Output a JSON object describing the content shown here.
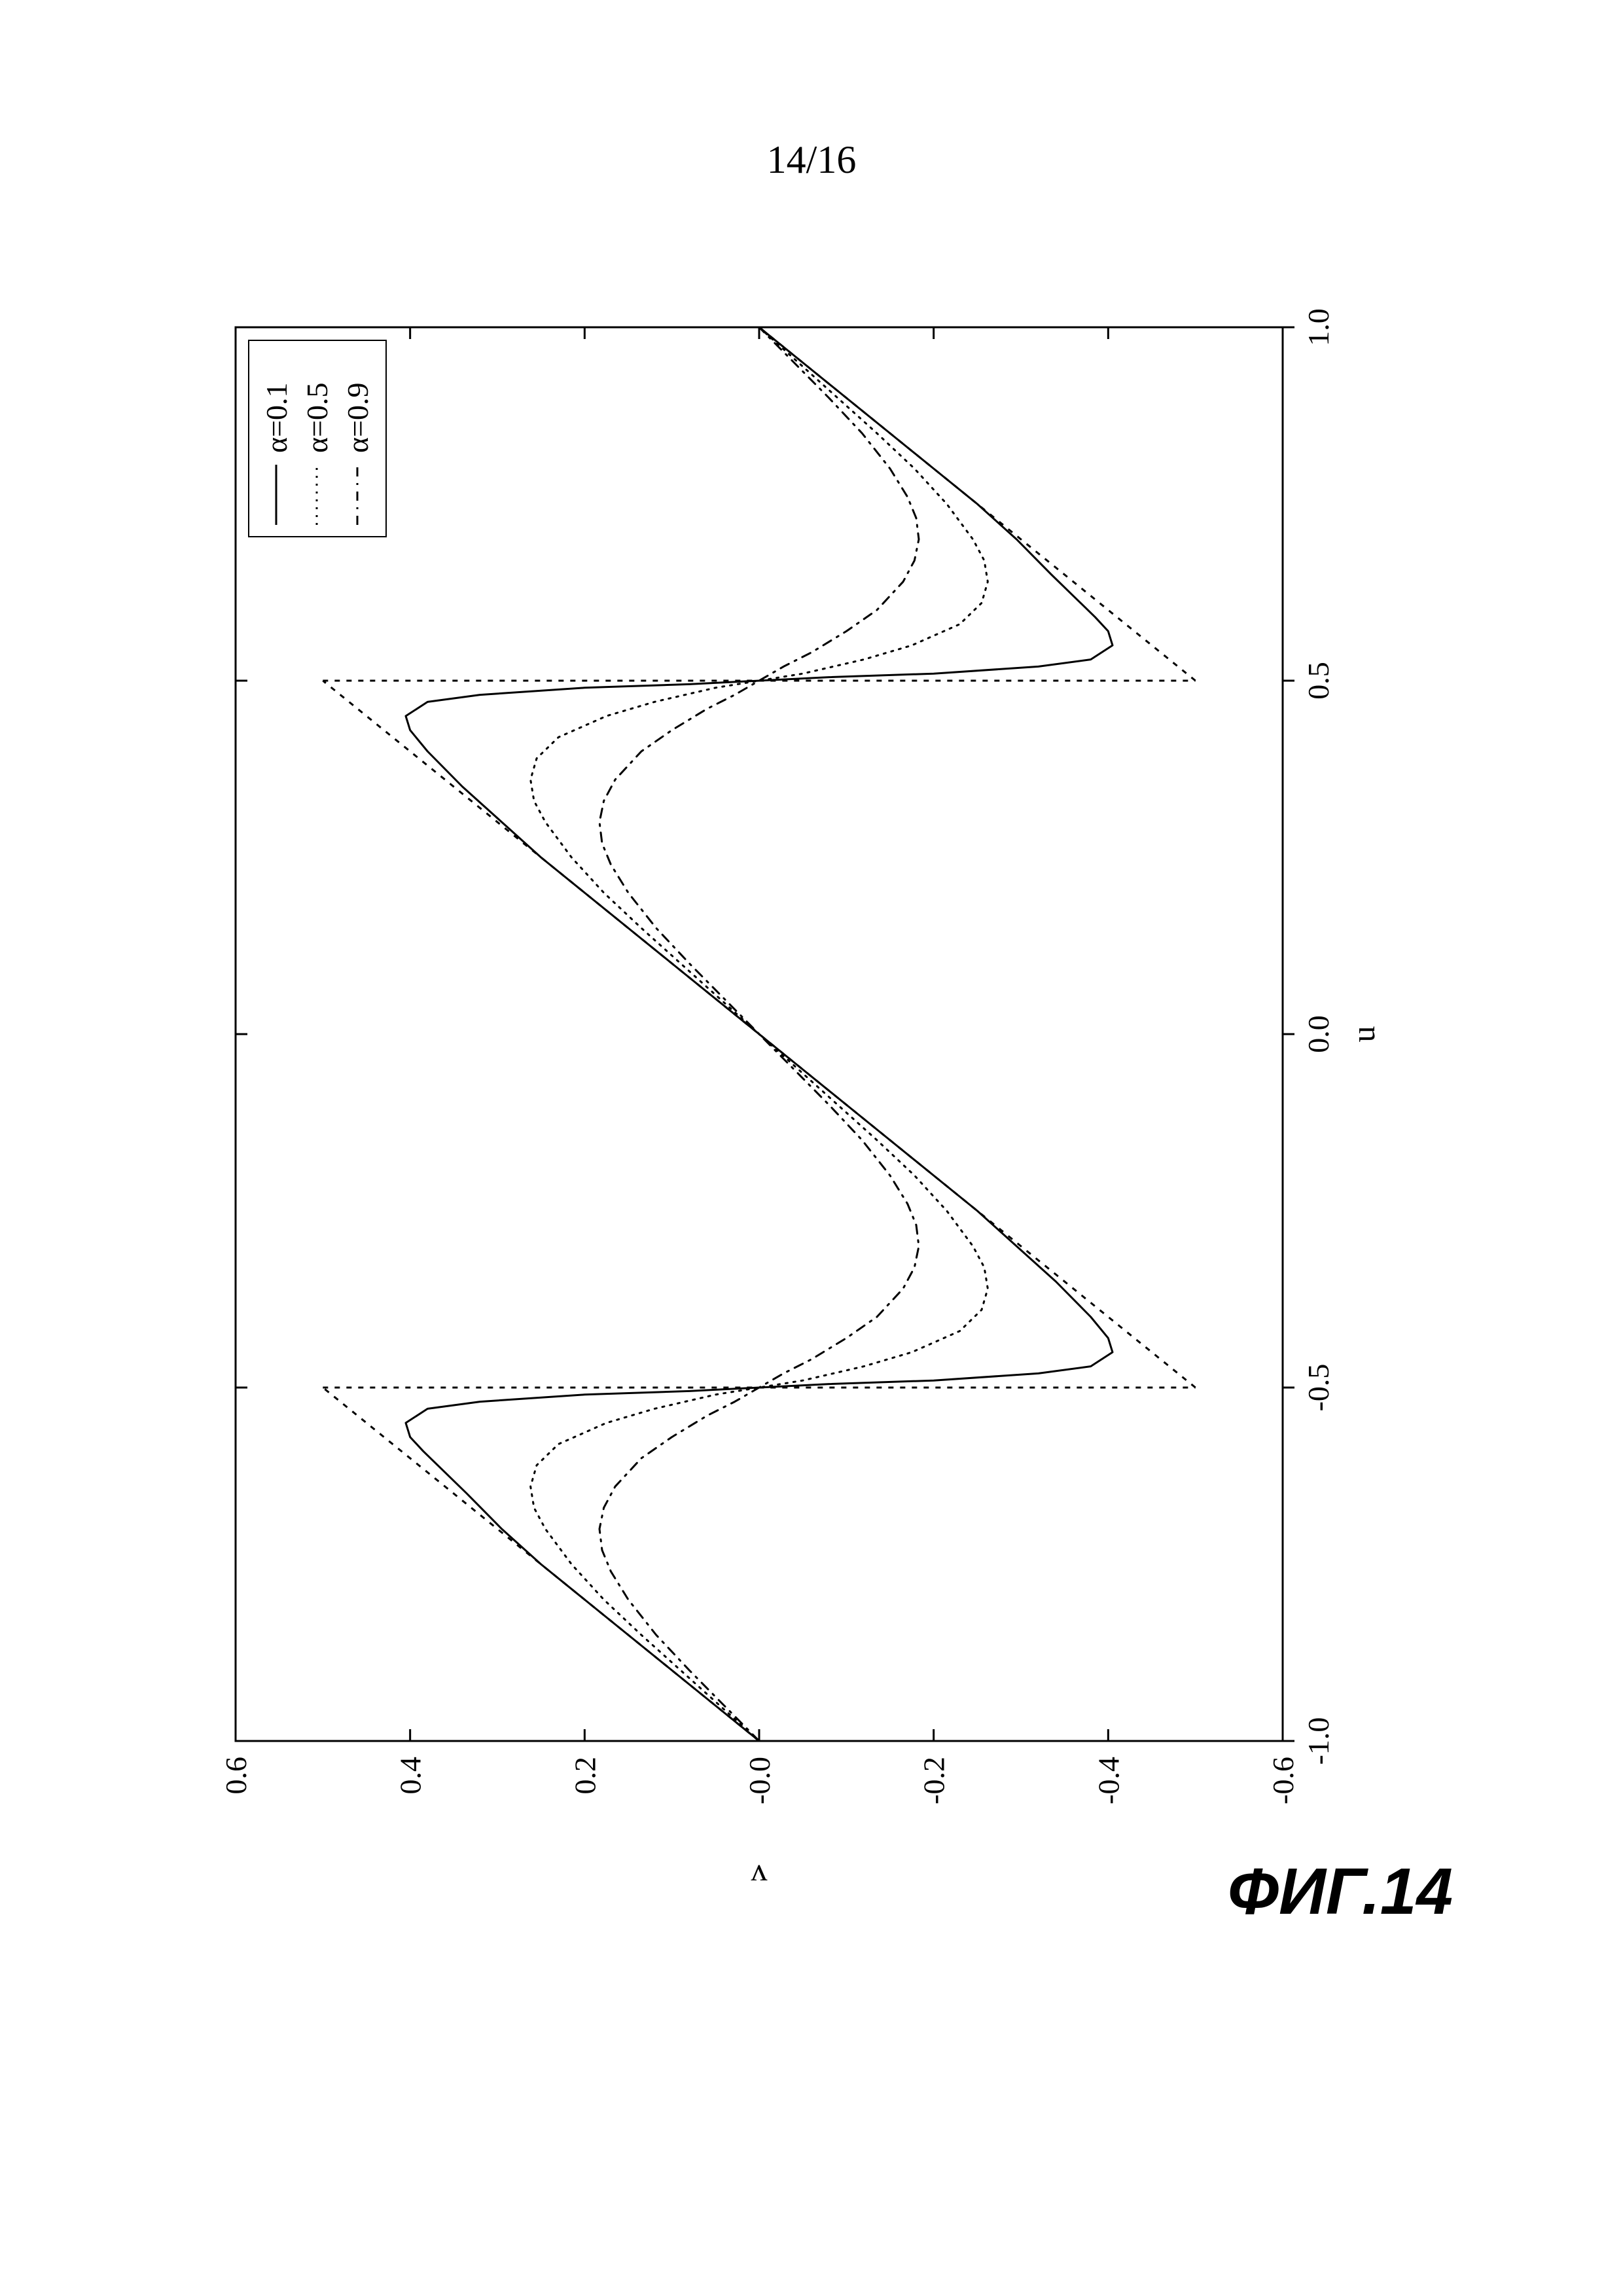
{
  "page_number": "14/16",
  "caption": "ФИГ.14",
  "chart": {
    "type": "line",
    "background_color": "#ffffff",
    "axis_color": "#000000",
    "tick_color": "#000000",
    "line_color": "#000000",
    "line_width": 3,
    "xlabel": "u",
    "ylabel": "v",
    "tick_fontsize": 46,
    "label_fontsize": 50,
    "xlim": [
      -1.0,
      1.0
    ],
    "ylim": [
      -0.6,
      0.6
    ],
    "xticks": [
      -1.0,
      -0.5,
      0.0,
      0.5,
      1.0
    ],
    "xtick_labels": [
      "-1.0",
      "-0.5",
      "0.0",
      "0.5",
      "1.0"
    ],
    "yticks": [
      -0.6,
      -0.4,
      -0.2,
      0.0,
      0.2,
      0.4,
      0.6
    ],
    "ytick_labels": [
      "-0.6",
      "-0.4",
      "-0.2",
      "-0.0",
      "0.2",
      "0.4",
      "0.6"
    ],
    "reference": {
      "dash": "8,10",
      "comment": "piecewise dashed reference: sawtooth",
      "segments": [
        [
          [
            -1.0,
            0.0
          ],
          [
            -0.5,
            0.5
          ]
        ],
        [
          [
            -0.5,
            0.5
          ],
          [
            -0.5,
            -0.5
          ]
        ],
        [
          [
            -0.5,
            -0.5
          ],
          [
            0.5,
            0.5
          ]
        ],
        [
          [
            0.5,
            0.5
          ],
          [
            0.5,
            -0.5
          ]
        ],
        [
          [
            0.5,
            -0.5
          ],
          [
            1.0,
            0.0
          ]
        ]
      ]
    },
    "series": [
      {
        "name": "alpha01",
        "label": "α=0.1",
        "dash": "none",
        "points": [
          [
            -1.0,
            0.0
          ],
          [
            -0.95,
            0.05
          ],
          [
            -0.9,
            0.1
          ],
          [
            -0.85,
            0.15
          ],
          [
            -0.8,
            0.2
          ],
          [
            -0.75,
            0.25
          ],
          [
            -0.7,
            0.295
          ],
          [
            -0.65,
            0.335
          ],
          [
            -0.62,
            0.36
          ],
          [
            -0.59,
            0.385
          ],
          [
            -0.57,
            0.4
          ],
          [
            -0.55,
            0.405
          ],
          [
            -0.53,
            0.38
          ],
          [
            -0.52,
            0.32
          ],
          [
            -0.51,
            0.2
          ],
          [
            -0.505,
            0.08
          ],
          [
            -0.5,
            0.0
          ],
          [
            -0.495,
            -0.08
          ],
          [
            -0.49,
            -0.2
          ],
          [
            -0.48,
            -0.32
          ],
          [
            -0.47,
            -0.38
          ],
          [
            -0.45,
            -0.405
          ],
          [
            -0.43,
            -0.4
          ],
          [
            -0.4,
            -0.38
          ],
          [
            -0.35,
            -0.34
          ],
          [
            -0.3,
            -0.295
          ],
          [
            -0.25,
            -0.25
          ],
          [
            -0.2,
            -0.2
          ],
          [
            -0.15,
            -0.15
          ],
          [
            -0.1,
            -0.1
          ],
          [
            -0.05,
            -0.05
          ],
          [
            0.0,
            0.0
          ],
          [
            0.05,
            0.05
          ],
          [
            0.1,
            0.1
          ],
          [
            0.15,
            0.15
          ],
          [
            0.2,
            0.2
          ],
          [
            0.25,
            0.25
          ],
          [
            0.3,
            0.295
          ],
          [
            0.35,
            0.34
          ],
          [
            0.4,
            0.38
          ],
          [
            0.43,
            0.4
          ],
          [
            0.45,
            0.405
          ],
          [
            0.47,
            0.38
          ],
          [
            0.48,
            0.32
          ],
          [
            0.49,
            0.2
          ],
          [
            0.495,
            0.08
          ],
          [
            0.5,
            0.0
          ],
          [
            0.505,
            -0.08
          ],
          [
            0.51,
            -0.2
          ],
          [
            0.52,
            -0.32
          ],
          [
            0.53,
            -0.38
          ],
          [
            0.55,
            -0.405
          ],
          [
            0.57,
            -0.4
          ],
          [
            0.59,
            -0.385
          ],
          [
            0.62,
            -0.36
          ],
          [
            0.65,
            -0.335
          ],
          [
            0.7,
            -0.295
          ],
          [
            0.75,
            -0.25
          ],
          [
            0.8,
            -0.2
          ],
          [
            0.85,
            -0.15
          ],
          [
            0.9,
            -0.1
          ],
          [
            0.95,
            -0.05
          ],
          [
            1.0,
            0.0
          ]
        ]
      },
      {
        "name": "alpha05",
        "label": "α=0.5",
        "dash": "3,9",
        "points": [
          [
            -1.0,
            0.0
          ],
          [
            -0.95,
            0.045
          ],
          [
            -0.9,
            0.09
          ],
          [
            -0.85,
            0.135
          ],
          [
            -0.8,
            0.178
          ],
          [
            -0.75,
            0.215
          ],
          [
            -0.7,
            0.245
          ],
          [
            -0.67,
            0.258
          ],
          [
            -0.64,
            0.262
          ],
          [
            -0.61,
            0.255
          ],
          [
            -0.58,
            0.23
          ],
          [
            -0.55,
            0.175
          ],
          [
            -0.53,
            0.12
          ],
          [
            -0.51,
            0.05
          ],
          [
            -0.5,
            0.0
          ],
          [
            -0.49,
            -0.05
          ],
          [
            -0.47,
            -0.12
          ],
          [
            -0.45,
            -0.175
          ],
          [
            -0.42,
            -0.23
          ],
          [
            -0.39,
            -0.255
          ],
          [
            -0.36,
            -0.262
          ],
          [
            -0.33,
            -0.258
          ],
          [
            -0.3,
            -0.245
          ],
          [
            -0.25,
            -0.215
          ],
          [
            -0.2,
            -0.178
          ],
          [
            -0.15,
            -0.135
          ],
          [
            -0.1,
            -0.09
          ],
          [
            -0.05,
            -0.045
          ],
          [
            0.0,
            0.0
          ],
          [
            0.05,
            0.045
          ],
          [
            0.1,
            0.09
          ],
          [
            0.15,
            0.135
          ],
          [
            0.2,
            0.178
          ],
          [
            0.25,
            0.215
          ],
          [
            0.3,
            0.245
          ],
          [
            0.33,
            0.258
          ],
          [
            0.36,
            0.262
          ],
          [
            0.39,
            0.255
          ],
          [
            0.42,
            0.23
          ],
          [
            0.45,
            0.175
          ],
          [
            0.47,
            0.12
          ],
          [
            0.49,
            0.05
          ],
          [
            0.5,
            0.0
          ],
          [
            0.51,
            -0.05
          ],
          [
            0.53,
            -0.12
          ],
          [
            0.55,
            -0.175
          ],
          [
            0.58,
            -0.23
          ],
          [
            0.61,
            -0.255
          ],
          [
            0.64,
            -0.262
          ],
          [
            0.67,
            -0.258
          ],
          [
            0.7,
            -0.245
          ],
          [
            0.75,
            -0.215
          ],
          [
            0.8,
            -0.178
          ],
          [
            0.85,
            -0.135
          ],
          [
            0.9,
            -0.09
          ],
          [
            0.95,
            -0.045
          ],
          [
            1.0,
            0.0
          ]
        ]
      },
      {
        "name": "alpha09",
        "label": "α=0.9",
        "dash": "14,10,3,10",
        "points": [
          [
            -1.0,
            0.0
          ],
          [
            -0.95,
            0.04
          ],
          [
            -0.9,
            0.08
          ],
          [
            -0.85,
            0.118
          ],
          [
            -0.8,
            0.15
          ],
          [
            -0.76,
            0.17
          ],
          [
            -0.73,
            0.18
          ],
          [
            -0.7,
            0.183
          ],
          [
            -0.67,
            0.178
          ],
          [
            -0.64,
            0.165
          ],
          [
            -0.6,
            0.135
          ],
          [
            -0.57,
            0.1
          ],
          [
            -0.54,
            0.06
          ],
          [
            -0.52,
            0.028
          ],
          [
            -0.5,
            0.0
          ],
          [
            -0.48,
            -0.028
          ],
          [
            -0.46,
            -0.06
          ],
          [
            -0.43,
            -0.1
          ],
          [
            -0.4,
            -0.135
          ],
          [
            -0.36,
            -0.165
          ],
          [
            -0.33,
            -0.178
          ],
          [
            -0.3,
            -0.183
          ],
          [
            -0.27,
            -0.18
          ],
          [
            -0.24,
            -0.17
          ],
          [
            -0.2,
            -0.15
          ],
          [
            -0.15,
            -0.118
          ],
          [
            -0.1,
            -0.08
          ],
          [
            -0.05,
            -0.04
          ],
          [
            0.0,
            0.0
          ],
          [
            0.05,
            0.04
          ],
          [
            0.1,
            0.08
          ],
          [
            0.15,
            0.118
          ],
          [
            0.2,
            0.15
          ],
          [
            0.24,
            0.17
          ],
          [
            0.27,
            0.18
          ],
          [
            0.3,
            0.183
          ],
          [
            0.33,
            0.178
          ],
          [
            0.36,
            0.165
          ],
          [
            0.4,
            0.135
          ],
          [
            0.43,
            0.1
          ],
          [
            0.46,
            0.06
          ],
          [
            0.48,
            0.028
          ],
          [
            0.5,
            0.0
          ],
          [
            0.52,
            -0.028
          ],
          [
            0.54,
            -0.06
          ],
          [
            0.57,
            -0.1
          ],
          [
            0.6,
            -0.135
          ],
          [
            0.64,
            -0.165
          ],
          [
            0.67,
            -0.178
          ],
          [
            0.7,
            -0.183
          ],
          [
            0.73,
            -0.18
          ],
          [
            0.76,
            -0.17
          ],
          [
            0.8,
            -0.15
          ],
          [
            0.85,
            -0.118
          ],
          [
            0.9,
            -0.08
          ],
          [
            0.95,
            -0.04
          ],
          [
            1.0,
            0.0
          ]
        ]
      }
    ],
    "legend": {
      "border_color": "#000000",
      "background": "#ffffff",
      "fontsize": 46,
      "items": [
        {
          "label": "α=0.1",
          "dash": "none"
        },
        {
          "label": "α=0.5",
          "dash": "3,9"
        },
        {
          "label": "α=0.9",
          "dash": "14,10,3,10"
        }
      ]
    }
  }
}
